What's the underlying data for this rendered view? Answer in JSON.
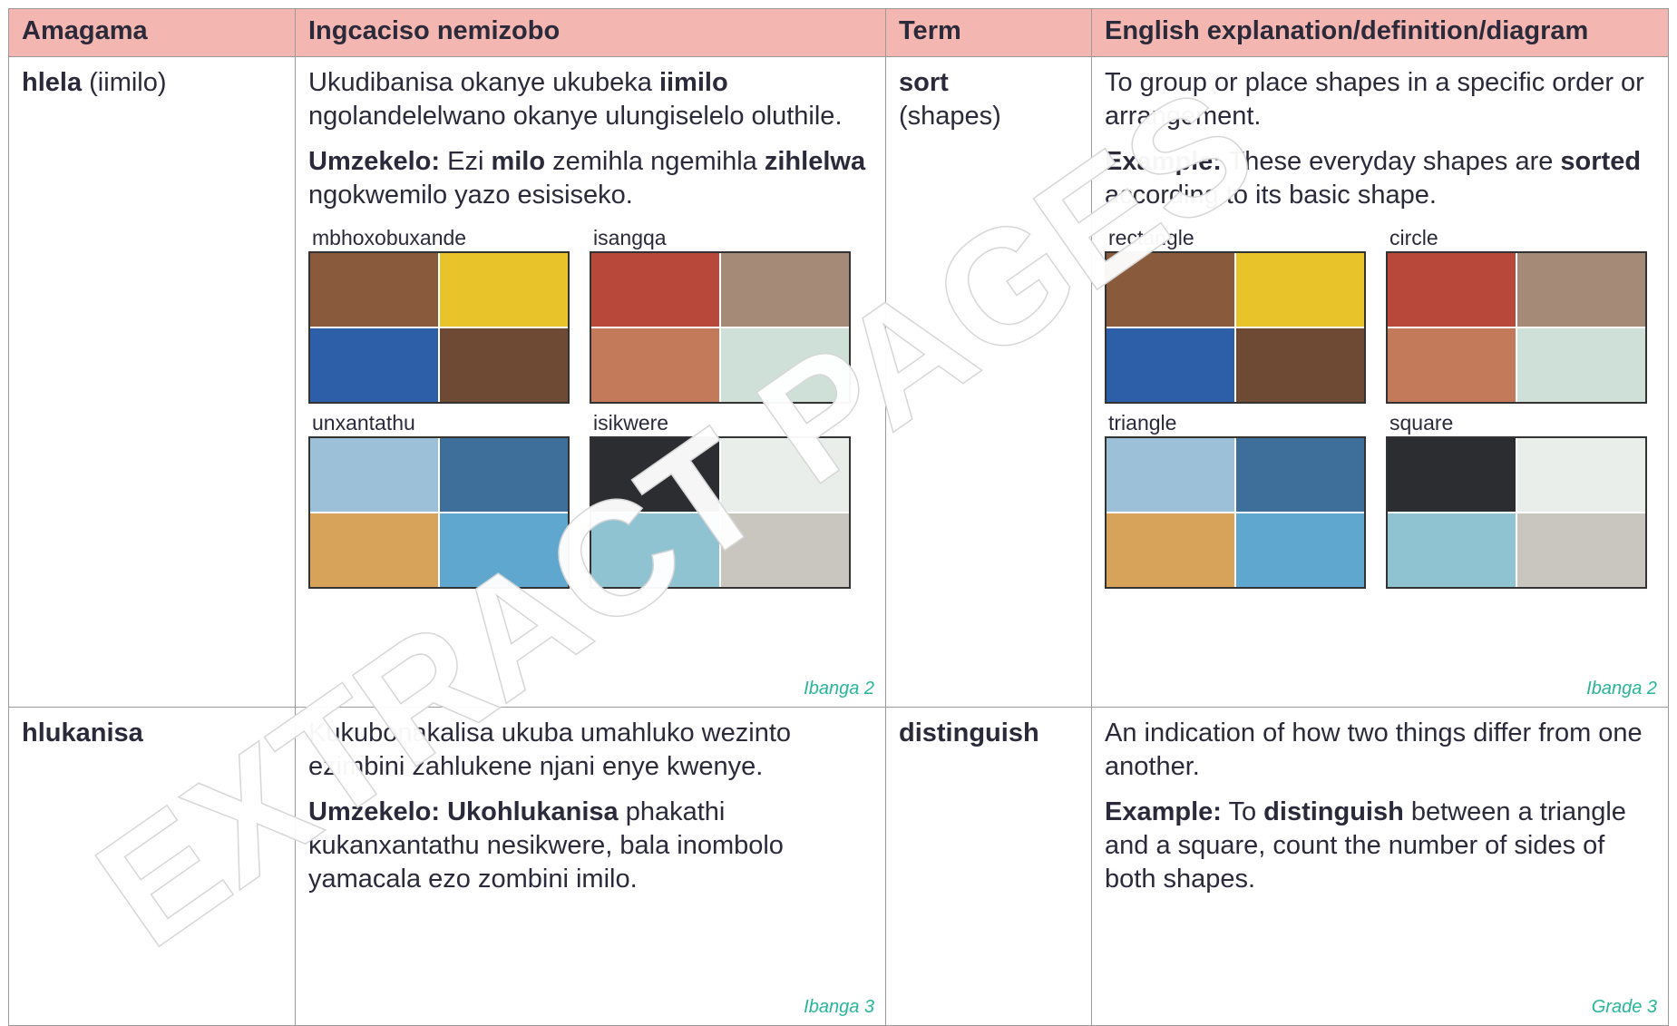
{
  "table": {
    "headers": [
      "Amagama",
      "Ingcaciso nemizobo",
      "Term",
      "English explanation/definition/diagram"
    ],
    "rows": [
      {
        "word": [
          {
            "text": "hlela",
            "bold": true
          },
          {
            "text": " (iimilo)"
          }
        ],
        "xhosa": {
          "paragraphs": [
            [
              {
                "text": "Ukudibanisa okanye ukubeka "
              },
              {
                "text": "iimilo",
                "bold": true
              },
              {
                "text": " ngolandelelwano okanye ulungiselelo oluthile."
              }
            ],
            [
              {
                "text": "Umzekelo:",
                "bold": true
              },
              {
                "text": " Ezi "
              },
              {
                "text": "milo",
                "bold": true
              },
              {
                "text": " zemihla ngemihla "
              },
              {
                "text": "zihlelwa",
                "bold": true
              },
              {
                "text": " ngokwemilo yazo esisiseko."
              }
            ]
          ],
          "images": [
            "mbhoxobuxande",
            "isangqa",
            "unxantathu",
            "isikwere"
          ],
          "grade": "Ibanga 2"
        },
        "term": [
          {
            "text": "sort",
            "bold": true
          },
          {
            "text": "(shapes)"
          }
        ],
        "english": {
          "paragraphs": [
            [
              {
                "text": "To group or place shapes in a specific order or arrangement."
              }
            ],
            [
              {
                "text": "Example:",
                "bold": true
              },
              {
                "text": " These everyday shapes are "
              },
              {
                "text": "sorted",
                "bold": true
              },
              {
                "text": " according to its basic shape."
              }
            ]
          ],
          "images": [
            "rectangle",
            "circle",
            "triangle",
            "square"
          ],
          "grade": "Ibanga 2"
        }
      },
      {
        "word": [
          {
            "text": "hlukanisa",
            "bold": true
          }
        ],
        "xhosa": {
          "paragraphs": [
            [
              {
                "text": "Kukubonakalisa ukuba umahluko wezinto ezimbini zahlukene njani enye kwenye."
              }
            ],
            [
              {
                "text": "Umzekelo: Ukohlukanisa",
                "bold": true
              },
              {
                "text": " phakathi kukanxantathu nesikwere, bala inombolo yamacala ezo zombini imilo."
              }
            ]
          ],
          "grade": "Ibanga 3"
        },
        "term": [
          {
            "text": "distinguish",
            "bold": true
          }
        ],
        "english": {
          "paragraphs": [
            [
              {
                "text": "An indication of how two things differ from one another."
              }
            ],
            [
              {
                "text": "Example:",
                "bold": true
              },
              {
                "text": " To "
              },
              {
                "text": "distinguish",
                "bold": true
              },
              {
                "text": " between a triangle and a square, count the number of sides of both shapes."
              }
            ]
          ],
          "grade": "Grade 3"
        }
      }
    ]
  },
  "watermark": "EXTRACT PAGES"
}
